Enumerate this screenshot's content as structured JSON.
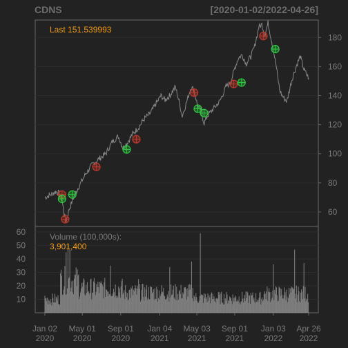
{
  "header": {
    "symbol": "CDNS",
    "range": "[2020-01-02/2022-04-26]"
  },
  "chart_data": {
    "type": "line",
    "title": "CDNS",
    "subtitle": "[2020-01-02/2022-04-26]",
    "last_label": "Last 151.539993",
    "price_axis": {
      "ylim": [
        50,
        192
      ],
      "ticks": [
        "60",
        "80",
        "100",
        "120",
        "140",
        "160",
        "180"
      ]
    },
    "volume_axis": {
      "ylim": [
        0,
        60
      ],
      "ticks": [
        "10",
        "20",
        "30",
        "40",
        "50",
        "60"
      ]
    },
    "volume_title": "Volume (100,000s):",
    "volume_last": "3,901,400",
    "x_ticks": [
      {
        "line1": "Jan 02",
        "line2": "2020",
        "t": 0
      },
      {
        "line1": "May 01",
        "line2": "2020",
        "t": 120
      },
      {
        "line1": "Sep 01",
        "line2": "2020",
        "t": 243
      },
      {
        "line1": "Jan 04",
        "line2": "2021",
        "t": 368
      },
      {
        "line1": "May 03",
        "line2": "2021",
        "t": 487
      },
      {
        "line1": "Sep 01",
        "line2": "2021",
        "t": 608
      },
      {
        "line1": "Jan 03",
        "line2": "2022",
        "t": 732
      },
      {
        "line1": "Apr 26",
        "line2": "2022",
        "t": 845
      }
    ],
    "price_series": [
      [
        0,
        70
      ],
      [
        20,
        72
      ],
      [
        35,
        74
      ],
      [
        45,
        73
      ],
      [
        55,
        68
      ],
      [
        62,
        58
      ],
      [
        68,
        54
      ],
      [
        78,
        62
      ],
      [
        92,
        70
      ],
      [
        110,
        78
      ],
      [
        130,
        86
      ],
      [
        150,
        92
      ],
      [
        170,
        96
      ],
      [
        195,
        100
      ],
      [
        215,
        108
      ],
      [
        235,
        112
      ],
      [
        250,
        104
      ],
      [
        265,
        108
      ],
      [
        282,
        114
      ],
      [
        300,
        118
      ],
      [
        318,
        124
      ],
      [
        338,
        128
      ],
      [
        355,
        134
      ],
      [
        372,
        140
      ],
      [
        385,
        137
      ],
      [
        400,
        140
      ],
      [
        418,
        146
      ],
      [
        430,
        136
      ],
      [
        440,
        126
      ],
      [
        452,
        134
      ],
      [
        468,
        146
      ],
      [
        478,
        144
      ],
      [
        490,
        132
      ],
      [
        500,
        130
      ],
      [
        510,
        121
      ],
      [
        520,
        126
      ],
      [
        540,
        131
      ],
      [
        560,
        136
      ],
      [
        580,
        146
      ],
      [
        595,
        149
      ],
      [
        610,
        160
      ],
      [
        620,
        166
      ],
      [
        632,
        168
      ],
      [
        645,
        162
      ],
      [
        660,
        167
      ],
      [
        672,
        174
      ],
      [
        685,
        187
      ],
      [
        695,
        189
      ],
      [
        705,
        182
      ],
      [
        715,
        190
      ],
      [
        728,
        176
      ],
      [
        740,
        162
      ],
      [
        752,
        144
      ],
      [
        760,
        140
      ],
      [
        775,
        136
      ],
      [
        790,
        150
      ],
      [
        805,
        160
      ],
      [
        818,
        167
      ],
      [
        830,
        158
      ],
      [
        845,
        152
      ]
    ],
    "buy_markers": [
      {
        "x": 55,
        "y": 69
      },
      [
        88,
        72
      ],
      [
        262,
        103
      ],
      [
        490,
        131
      ],
      [
        510,
        128
      ],
      [
        630,
        149
      ],
      [
        738,
        172
      ]
    ],
    "sell_markers": [
      [
        55,
        72
      ],
      [
        65,
        55
      ],
      [
        165,
        91
      ],
      [
        293,
        110
      ],
      [
        478,
        142
      ],
      [
        605,
        148
      ],
      [
        700,
        181
      ]
    ],
    "volume_peaks": [
      {
        "t": 68,
        "v": 45
      },
      {
        "t": 74,
        "v": 50
      },
      {
        "t": 80,
        "v": 47
      },
      {
        "t": 210,
        "v": 35
      },
      {
        "t": 300,
        "v": 25
      },
      {
        "t": 400,
        "v": 34
      },
      {
        "t": 470,
        "v": 38
      },
      {
        "t": 498,
        "v": 59
      },
      {
        "t": 732,
        "v": 36
      },
      {
        "t": 800,
        "v": 47
      },
      {
        "t": 830,
        "v": 37
      },
      {
        "t": 843,
        "v": 38
      }
    ]
  },
  "colors": {
    "background": "#222222",
    "panel_border": "#6a6a6a",
    "grid": "#2d2d2d",
    "price_line": "#8a8a8a",
    "volume_bar": "#8a8a8a",
    "buy_marker": "#2ecc40",
    "sell_marker": "#c0392b",
    "highlight": "#f39c12",
    "text": "#7a7a7a"
  }
}
